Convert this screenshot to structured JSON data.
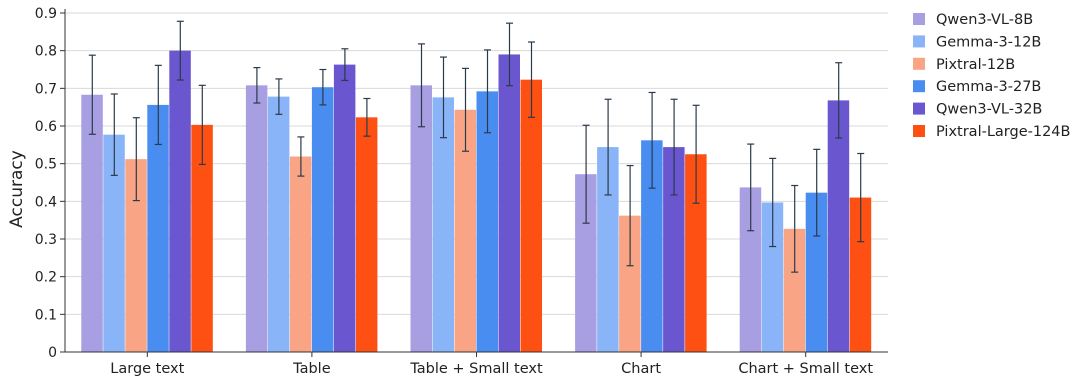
{
  "chart_data": {
    "type": "bar",
    "title": "",
    "xlabel": "",
    "ylabel": "Accuracy",
    "ylim": [
      0,
      0.9
    ],
    "yticks": [
      "0",
      "0.1",
      "0.2",
      "0.3",
      "0.4",
      "0.5",
      "0.6",
      "0.7",
      "0.8",
      "0.9"
    ],
    "grid": "horizontal",
    "legend_position": "right",
    "error_bars": true,
    "categories": [
      "Large text",
      "Table",
      "Table + Small text",
      "Chart",
      "Chart + Small text"
    ],
    "series": [
      {
        "name": "Qwen3-VL-8B",
        "color": "#A89FE3",
        "values": [
          0.683,
          0.708,
          0.708,
          0.472,
          0.437
        ],
        "errors": [
          0.105,
          0.047,
          0.11,
          0.13,
          0.115
        ]
      },
      {
        "name": "Gemma-3-12B",
        "color": "#8AB4F8",
        "values": [
          0.577,
          0.678,
          0.676,
          0.544,
          0.397
        ],
        "errors": [
          0.108,
          0.047,
          0.107,
          0.127,
          0.117
        ]
      },
      {
        "name": "Pixtral-12B",
        "color": "#F9A585",
        "values": [
          0.512,
          0.519,
          0.643,
          0.362,
          0.327
        ],
        "errors": [
          0.11,
          0.052,
          0.11,
          0.133,
          0.115
        ]
      },
      {
        "name": "Gemma-3-27B",
        "color": "#4A8DF0",
        "values": [
          0.656,
          0.703,
          0.692,
          0.562,
          0.423
        ],
        "errors": [
          0.105,
          0.047,
          0.11,
          0.127,
          0.115
        ]
      },
      {
        "name": "Qwen3-VL-32B",
        "color": "#6A57CF",
        "values": [
          0.8,
          0.763,
          0.79,
          0.544,
          0.668
        ],
        "errors": [
          0.078,
          0.042,
          0.083,
          0.127,
          0.1
        ]
      },
      {
        "name": "Pixtral-Large-124B",
        "color": "#FD5012",
        "values": [
          0.603,
          0.623,
          0.723,
          0.525,
          0.41
        ],
        "errors": [
          0.105,
          0.05,
          0.1,
          0.13,
          0.117
        ]
      }
    ]
  }
}
